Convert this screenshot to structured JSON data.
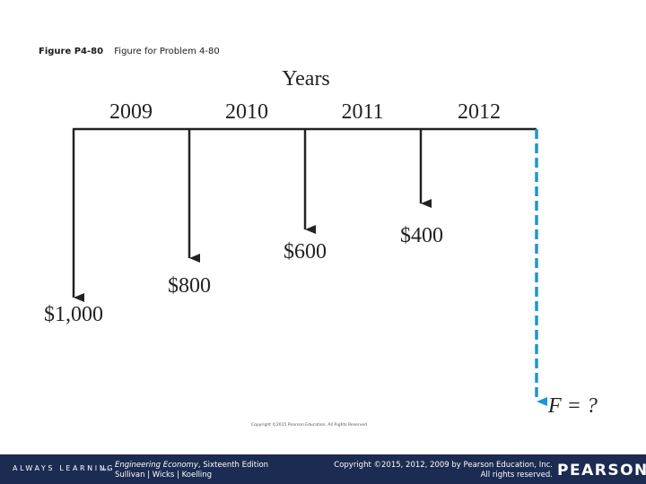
{
  "caption": {
    "number": "Figure P4-80",
    "text": "Figure for Problem 4-80"
  },
  "diagram": {
    "axis_title": "Years",
    "years": [
      "2009",
      "2010",
      "2011",
      "2012"
    ],
    "cash_flows": [
      {
        "position": 0,
        "label": "$1,000",
        "amount": 1000,
        "direction": "down"
      },
      {
        "position": 1,
        "label": "$800",
        "amount": 800,
        "direction": "down"
      },
      {
        "position": 2,
        "label": "$600",
        "amount": 600,
        "direction": "down"
      },
      {
        "position": 3,
        "label": "$400",
        "amount": 400,
        "direction": "down"
      }
    ],
    "future_value": {
      "position": 4,
      "label": "F = ?",
      "style": "dashed",
      "direction": "down"
    },
    "small_copyright": "Copyright ©2015 Pearson Education, All Rights Reserved"
  },
  "footer": {
    "brand": "ALWAYS LEARNING",
    "book_title": "Engineering Economy",
    "book_edition": ", Sixteenth Edition",
    "authors": "Sullivan | Wicks | Koelling",
    "copyright_line1": "Copyright ©2015, 2012, 2009 by Pearson Education, Inc.",
    "copyright_line2": "All rights reserved.",
    "logo": "PEARSON"
  },
  "colors": {
    "line": "#222222",
    "future_value": "#1e95d3",
    "footer_bg": "#1c2b52"
  }
}
